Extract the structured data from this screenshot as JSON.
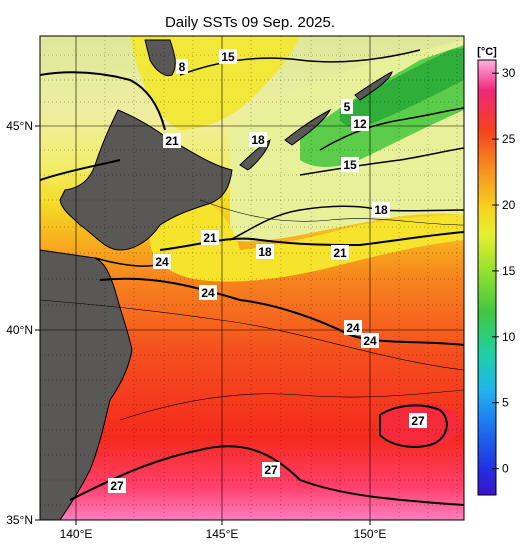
{
  "title": "Daily SSTs 09 Sep. 2025.",
  "colorbar": {
    "unit_label": "[°C]",
    "min": -2,
    "max": 31,
    "ticks": [
      "30",
      "25",
      "20",
      "15",
      "10",
      "5",
      "0"
    ],
    "tick_values": [
      30,
      25,
      20,
      15,
      10,
      5,
      0
    ]
  },
  "axes": {
    "lon_labels": [
      "140°E",
      "145°E",
      "150°E"
    ],
    "lat_labels": [
      "45°N",
      "40°N",
      "35°N"
    ]
  },
  "contour_labels": [
    {
      "text": "15"
    },
    {
      "text": "8"
    },
    {
      "text": "21"
    },
    {
      "text": "18"
    },
    {
      "text": "5"
    },
    {
      "text": "12"
    },
    {
      "text": "15"
    },
    {
      "text": "18"
    },
    {
      "text": "21"
    },
    {
      "text": "24"
    },
    {
      "text": "18"
    },
    {
      "text": "21"
    },
    {
      "text": "24"
    },
    {
      "text": "24"
    },
    {
      "text": "24"
    },
    {
      "text": "27"
    },
    {
      "text": "27"
    },
    {
      "text": "27"
    }
  ],
  "colors": {
    "land": "#5a5757",
    "ocean_warm": "#f53a1e",
    "ocean_hot": "#ff6eb4",
    "ocean_mid": "#f7a21e",
    "ocean_cool": "#f2e63a",
    "ocean_cold": "#3fbf3f"
  }
}
